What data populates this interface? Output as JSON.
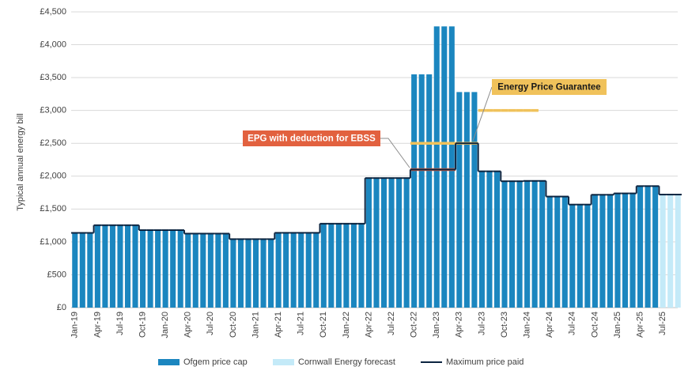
{
  "chart_data": {
    "type": "bar",
    "ylabel": "Typical annual energy bill",
    "categories": [
      "Jan-19",
      null,
      null,
      "Apr-19",
      null,
      null,
      "Jul-19",
      null,
      null,
      "Oct-19",
      null,
      null,
      "Jan-20",
      null,
      null,
      "Apr-20",
      null,
      null,
      "Jul-20",
      null,
      null,
      "Oct-20",
      null,
      null,
      "Jan-21",
      null,
      null,
      "Apr-21",
      null,
      null,
      "Jul-21",
      null,
      null,
      "Oct-21",
      null,
      null,
      "Jan-22",
      null,
      null,
      "Apr-22",
      null,
      null,
      "Jul-22",
      null,
      null,
      "Oct-22",
      null,
      null,
      "Jan-23",
      null,
      null,
      "Apr-23",
      null,
      null,
      "Jul-23",
      null,
      null,
      "Oct-23",
      null,
      null,
      "Jan-24",
      null,
      null,
      "Apr-24",
      null,
      null,
      "Jul-24",
      null,
      null,
      "Oct-24",
      null,
      null,
      "Jan-25",
      null,
      null,
      "Apr-25",
      null,
      null,
      "Jul-25",
      null,
      null
    ],
    "series": [
      {
        "name": "Ofgem price cap",
        "type": "bar",
        "color": "#1b86bf",
        "values": [
          1137,
          1137,
          1137,
          1254,
          1254,
          1254,
          1254,
          1254,
          1254,
          1179,
          1179,
          1179,
          1179,
          1179,
          1179,
          1126,
          1126,
          1126,
          1126,
          1126,
          1126,
          1042,
          1042,
          1042,
          1042,
          1042,
          1042,
          1138,
          1138,
          1138,
          1138,
          1138,
          1138,
          1277,
          1277,
          1277,
          1277,
          1277,
          1277,
          1971,
          1971,
          1971,
          1971,
          1971,
          1971,
          3549,
          3549,
          3549,
          4279,
          4279,
          4279,
          3280,
          3280,
          3280,
          2074,
          2074,
          2074,
          1923,
          1923,
          1923,
          1928,
          1928,
          1928,
          1690,
          1690,
          1690,
          1568,
          1568,
          1568,
          1717,
          1717,
          1717,
          1738,
          1738,
          1738,
          1849,
          1849,
          1849,
          null,
          null,
          null
        ]
      },
      {
        "name": "Cornwall Energy forecast",
        "type": "bar",
        "color": "#c4eaf8",
        "values": [
          null,
          null,
          null,
          null,
          null,
          null,
          null,
          null,
          null,
          null,
          null,
          null,
          null,
          null,
          null,
          null,
          null,
          null,
          null,
          null,
          null,
          null,
          null,
          null,
          null,
          null,
          null,
          null,
          null,
          null,
          null,
          null,
          null,
          null,
          null,
          null,
          null,
          null,
          null,
          null,
          null,
          null,
          null,
          null,
          null,
          null,
          null,
          null,
          null,
          null,
          null,
          null,
          null,
          null,
          null,
          null,
          null,
          null,
          null,
          null,
          null,
          null,
          null,
          null,
          null,
          null,
          null,
          null,
          null,
          null,
          null,
          null,
          null,
          null,
          null,
          null,
          null,
          null,
          1720,
          1720,
          1720
        ]
      },
      {
        "name": "Maximum price paid",
        "type": "line",
        "color": "#0b2440",
        "values": [
          1137,
          1137,
          1137,
          1254,
          1254,
          1254,
          1254,
          1254,
          1254,
          1179,
          1179,
          1179,
          1179,
          1179,
          1179,
          1126,
          1126,
          1126,
          1126,
          1126,
          1126,
          1042,
          1042,
          1042,
          1042,
          1042,
          1042,
          1138,
          1138,
          1138,
          1138,
          1138,
          1138,
          1277,
          1277,
          1277,
          1277,
          1277,
          1277,
          1971,
          1971,
          1971,
          1971,
          1971,
          1971,
          2100,
          2100,
          2100,
          2100,
          2100,
          2100,
          2500,
          2500,
          2500,
          2074,
          2074,
          2074,
          1923,
          1923,
          1923,
          1928,
          1928,
          1928,
          1690,
          1690,
          1690,
          1568,
          1568,
          1568,
          1717,
          1717,
          1717,
          1738,
          1738,
          1738,
          1849,
          1849,
          1849,
          1720,
          1720,
          1720
        ]
      }
    ],
    "annotations": [
      {
        "text": "Energy Price Guarantee",
        "color": "#f0c25b",
        "text_color": "#1a1a1a",
        "values": [
          null,
          null,
          null,
          null,
          null,
          null,
          null,
          null,
          null,
          null,
          null,
          null,
          null,
          null,
          null,
          null,
          null,
          null,
          null,
          null,
          null,
          null,
          null,
          null,
          null,
          null,
          null,
          null,
          null,
          null,
          null,
          null,
          null,
          null,
          null,
          null,
          null,
          null,
          null,
          null,
          null,
          null,
          null,
          null,
          null,
          2500,
          2500,
          2500,
          2500,
          2500,
          2500,
          2500,
          2500,
          2500,
          3000,
          3000,
          3000,
          3000,
          3000,
          3000,
          3000,
          3000,
          null,
          null,
          null,
          null,
          null,
          null,
          null,
          null,
          null,
          null,
          null,
          null,
          null,
          null,
          null,
          null,
          null,
          null,
          null
        ]
      },
      {
        "text": "EPG with deduction for EBSS",
        "color": "#e2613f",
        "text_color": "#ffffff",
        "values": [
          null,
          null,
          null,
          null,
          null,
          null,
          null,
          null,
          null,
          null,
          null,
          null,
          null,
          null,
          null,
          null,
          null,
          null,
          null,
          null,
          null,
          null,
          null,
          null,
          null,
          null,
          null,
          null,
          null,
          null,
          null,
          null,
          null,
          null,
          null,
          null,
          null,
          null,
          null,
          null,
          null,
          null,
          null,
          null,
          null,
          2100,
          2100,
          2100,
          2100,
          2100,
          2100,
          null,
          null,
          null,
          null,
          null,
          null,
          null,
          null,
          null,
          null,
          null,
          null,
          null,
          null,
          null,
          null,
          null,
          null,
          null,
          null,
          null,
          null,
          null,
          null,
          null,
          null,
          null,
          null,
          null,
          null
        ]
      }
    ],
    "ylim": [
      0,
      4500
    ],
    "yticks": [
      {
        "value": 0,
        "label": "£0"
      },
      {
        "value": 500,
        "label": "£500"
      },
      {
        "value": 1000,
        "label": "£1,000"
      },
      {
        "value": 1500,
        "label": "£1,500"
      },
      {
        "value": 2000,
        "label": "£2,000"
      },
      {
        "value": 2500,
        "label": "£2,500"
      },
      {
        "value": 3000,
        "label": "£3,000"
      },
      {
        "value": 3500,
        "label": "£3,500"
      },
      {
        "value": 4000,
        "label": "£4,000"
      },
      {
        "value": 4500,
        "label": "£4,500"
      }
    ],
    "grid": true,
    "legend": "bottom"
  }
}
